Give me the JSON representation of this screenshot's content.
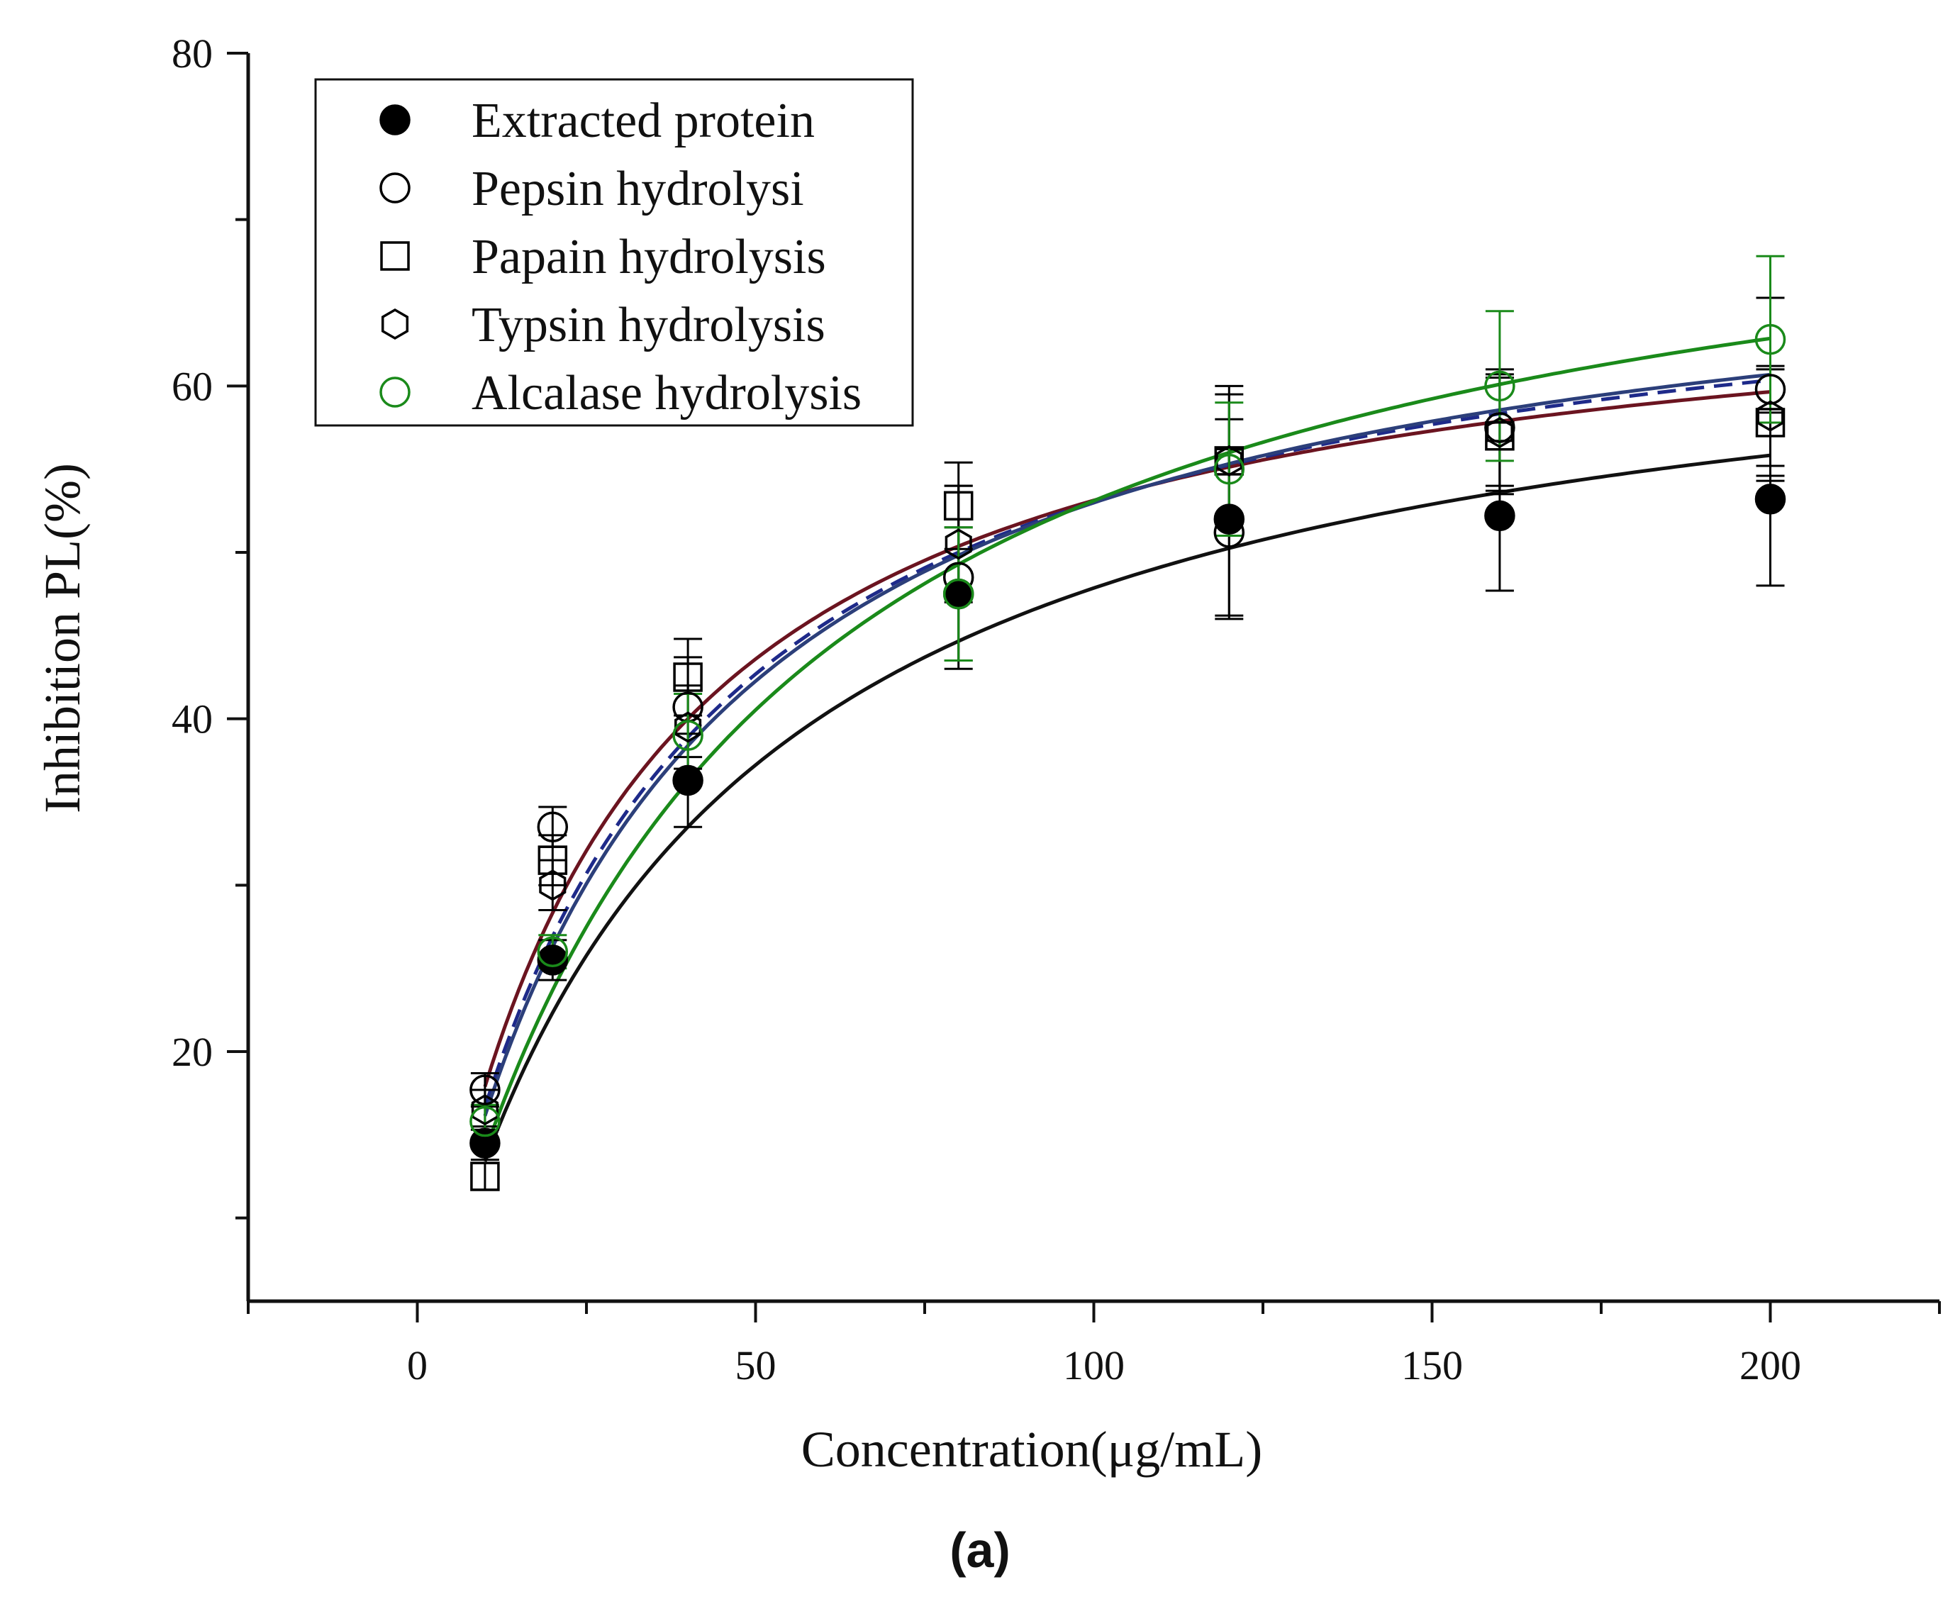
{
  "chart_data": {
    "type": "scatter",
    "title": "",
    "panel_label": "(a)",
    "xlabel": "Concentration(μg/mL)",
    "ylabel": "Inhibition PL(%)",
    "xlim": [
      -25,
      225
    ],
    "ylim": [
      5,
      80
    ],
    "xticks": [
      0,
      50,
      100,
      150,
      200
    ],
    "xtick_labels": [
      "0",
      "50",
      "100",
      "150",
      "200"
    ],
    "yticks": [
      20,
      40,
      60,
      80
    ],
    "ytick_labels": [
      "20",
      "40",
      "60",
      "80"
    ],
    "grid": false,
    "legend_position": "top-left",
    "x": [
      10,
      20,
      40,
      80,
      120,
      160,
      200
    ],
    "series": [
      {
        "name": "Extracted protein",
        "marker": "filled-circle",
        "color": "#000000",
        "values": [
          14.5,
          25.5,
          36.3,
          47.5,
          52.0,
          52.2,
          53.2
        ],
        "errors": [
          1.0,
          1.2,
          2.8,
          4.0,
          6.0,
          4.5,
          5.2
        ],
        "fit_vmax": 67.0,
        "fit_k": 40.0,
        "fit_color": "#111111",
        "fit_dash": false
      },
      {
        "name": "Pepsin hydrolysi",
        "marker": "open-circle",
        "color": "#000000",
        "values": [
          17.7,
          33.5,
          40.7,
          48.5,
          51.2,
          57.5,
          59.8
        ],
        "errors": [
          1.0,
          1.2,
          3.0,
          5.5,
          5.0,
          3.5,
          5.5
        ],
        "fit_vmax": 68.0,
        "fit_k": 28.0,
        "fit_color": "#6b1420",
        "fit_dash": false
      },
      {
        "name": "Papain hydrolysis",
        "marker": "open-square",
        "color": "#000000",
        "values": [
          12.5,
          31.5,
          42.5,
          52.8,
          55.5,
          57.0,
          57.8
        ],
        "errors": [
          0.8,
          1.5,
          2.3,
          2.6,
          4.5,
          3.5,
          3.2
        ],
        "fit_vmax": 70.0,
        "fit_k": 32.0,
        "fit_color": "#1e2a8a",
        "fit_dash": true
      },
      {
        "name": "Typsin hydrolysis",
        "marker": "open-hexagon",
        "color": "#000000",
        "values": [
          16.5,
          30.0,
          39.5,
          50.5,
          55.5,
          57.2,
          58.2
        ],
        "errors": [
          1.2,
          1.5,
          2.5,
          3.5,
          4.0,
          3.5,
          3.0
        ],
        "fit_vmax": 71.0,
        "fit_k": 34.0,
        "fit_color": "#2c3f7a",
        "fit_dash": false
      },
      {
        "name": "Alcalase hydrolysis",
        "marker": "open-circle",
        "color": "#1a8a1a",
        "values": [
          15.8,
          26.0,
          39.0,
          47.5,
          55.0,
          60.0,
          62.8
        ],
        "errors": [
          1.0,
          1.0,
          2.5,
          4.0,
          4.0,
          4.5,
          5.0
        ],
        "fit_vmax": 77.0,
        "fit_k": 45.0,
        "fit_color": "#1a8a1a",
        "fit_dash": false
      }
    ]
  }
}
